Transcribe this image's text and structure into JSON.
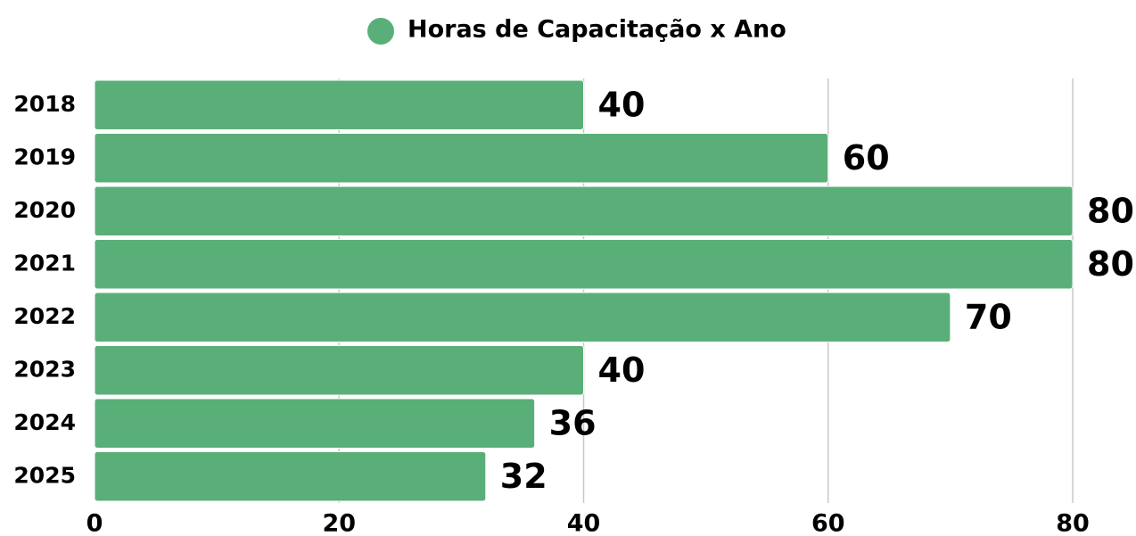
{
  "chart_data": {
    "type": "bar",
    "orientation": "horizontal",
    "categories": [
      "2018",
      "2019",
      "2020",
      "2021",
      "2022",
      "2023",
      "2024",
      "2025"
    ],
    "series": [
      {
        "name": "Horas de Capacitação x Ano",
        "color": "#5aaf78",
        "values": [
          40,
          60,
          80,
          80,
          70,
          40,
          36,
          32
        ]
      }
    ],
    "xlim": [
      0,
      80
    ],
    "xticks": [
      0,
      20,
      40,
      60,
      80
    ],
    "grid": true,
    "legend": "top"
  }
}
